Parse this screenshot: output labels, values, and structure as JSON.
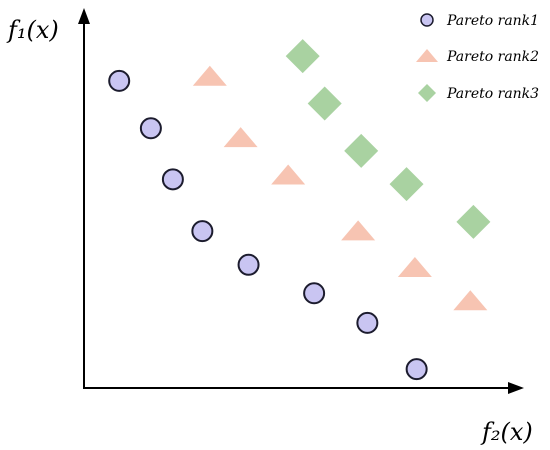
{
  "chart_data": {
    "type": "scatter",
    "title": "",
    "ylabel": "f₁(x)",
    "xlabel": "f₂(x)",
    "xlim": [
      0,
      100
    ],
    "ylim": [
      0,
      100
    ],
    "grid": false,
    "legend_position": "top-right",
    "series": [
      {
        "name": "Pareto rank1",
        "marker": "circle",
        "color": "#c9c5f2",
        "edge_color": "#1c1c2e",
        "x": [
          8,
          15.2,
          20.2,
          26.9,
          37.4,
          52.3,
          64.4,
          75.6
        ],
        "y": [
          83,
          70.2,
          56.4,
          42.4,
          33.3,
          25.6,
          17.6,
          5.1
        ]
      },
      {
        "name": "Pareto rank2",
        "marker": "triangle",
        "color": "#f7c4b2",
        "x": [
          28.6,
          35.6,
          46.4,
          62.3,
          75.2,
          87.8
        ],
        "y": [
          84.4,
          67.8,
          57.7,
          42.6,
          32.7,
          23.7
        ]
      },
      {
        "name": "Pareto rank3",
        "marker": "diamond",
        "color": "#a9d2a1",
        "x": [
          49.7,
          54.7,
          63,
          73.3,
          88.5
        ],
        "y": [
          89.7,
          76.9,
          64.1,
          55.1,
          44.9
        ]
      }
    ]
  }
}
